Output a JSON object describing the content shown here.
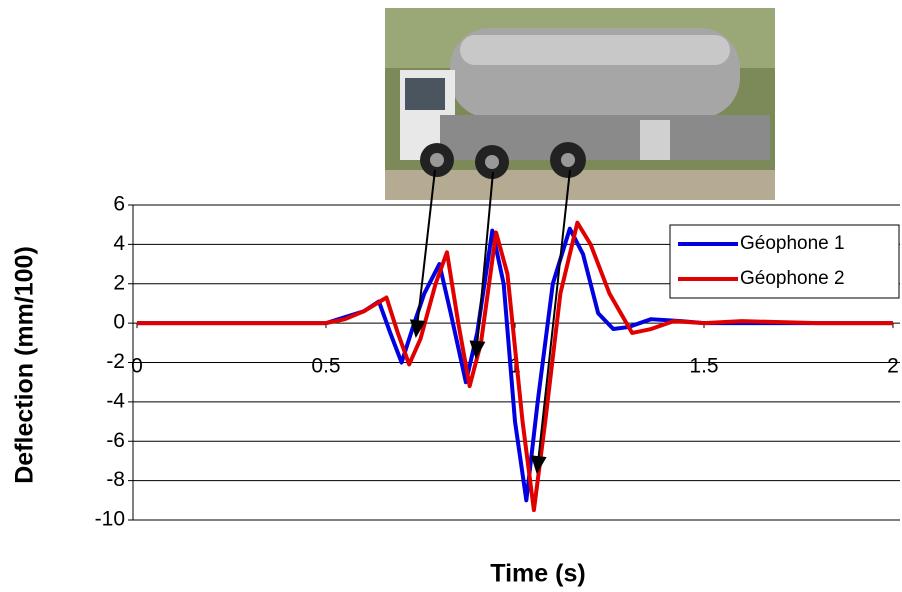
{
  "chart_data": {
    "type": "line",
    "x_label": "Time (s)",
    "y_label": "Deflection (mm/100)",
    "xlim": [
      0,
      2
    ],
    "xticks": [
      0,
      0.5,
      1,
      1.5,
      2
    ],
    "ylim": [
      -10,
      6
    ],
    "yticks": [
      6,
      4,
      2,
      0,
      -2,
      -4,
      -6,
      -8,
      -10
    ],
    "grid": true,
    "legend": "upper right",
    "series": [
      {
        "name": "Géophone 1",
        "color": "#0000e0",
        "x": [
          0,
          0.1,
          0.2,
          0.3,
          0.4,
          0.5,
          0.55,
          0.6,
          0.64,
          0.67,
          0.7,
          0.73,
          0.76,
          0.8,
          0.83,
          0.87,
          0.9,
          0.94,
          0.97,
          1.0,
          1.03,
          1.06,
          1.1,
          1.145,
          1.18,
          1.22,
          1.26,
          1.3,
          1.36,
          1.44,
          1.5,
          1.6,
          1.8,
          2.0
        ],
        "values": [
          0,
          0,
          0,
          0,
          0,
          0,
          0.3,
          0.6,
          1.1,
          -0.5,
          -2,
          -0.2,
          1.5,
          3,
          0.5,
          -3,
          -0.5,
          4.7,
          2,
          -5,
          -9,
          -4,
          2,
          4.8,
          3.5,
          0.5,
          -0.3,
          -0.2,
          0.2,
          0.1,
          0,
          0,
          0,
          0
        ]
      },
      {
        "name": "Géophone 2",
        "color": "#e00000",
        "x": [
          0,
          0.1,
          0.2,
          0.3,
          0.4,
          0.5,
          0.55,
          0.6,
          0.66,
          0.69,
          0.72,
          0.75,
          0.79,
          0.82,
          0.85,
          0.88,
          0.91,
          0.95,
          0.98,
          1.02,
          1.05,
          1.08,
          1.12,
          1.165,
          1.2,
          1.25,
          1.31,
          1.36,
          1.42,
          1.5,
          1.6,
          1.8,
          2.0
        ],
        "values": [
          0,
          0,
          0,
          0,
          0,
          0,
          0.2,
          0.6,
          1.3,
          -0.5,
          -2.1,
          -0.8,
          2,
          3.6,
          0,
          -3.2,
          -1,
          4.6,
          2.5,
          -5,
          -9.5,
          -5,
          1.5,
          5.1,
          4,
          1.5,
          -0.5,
          -0.3,
          0.1,
          0,
          0.1,
          0,
          0
        ]
      }
    ]
  }
}
